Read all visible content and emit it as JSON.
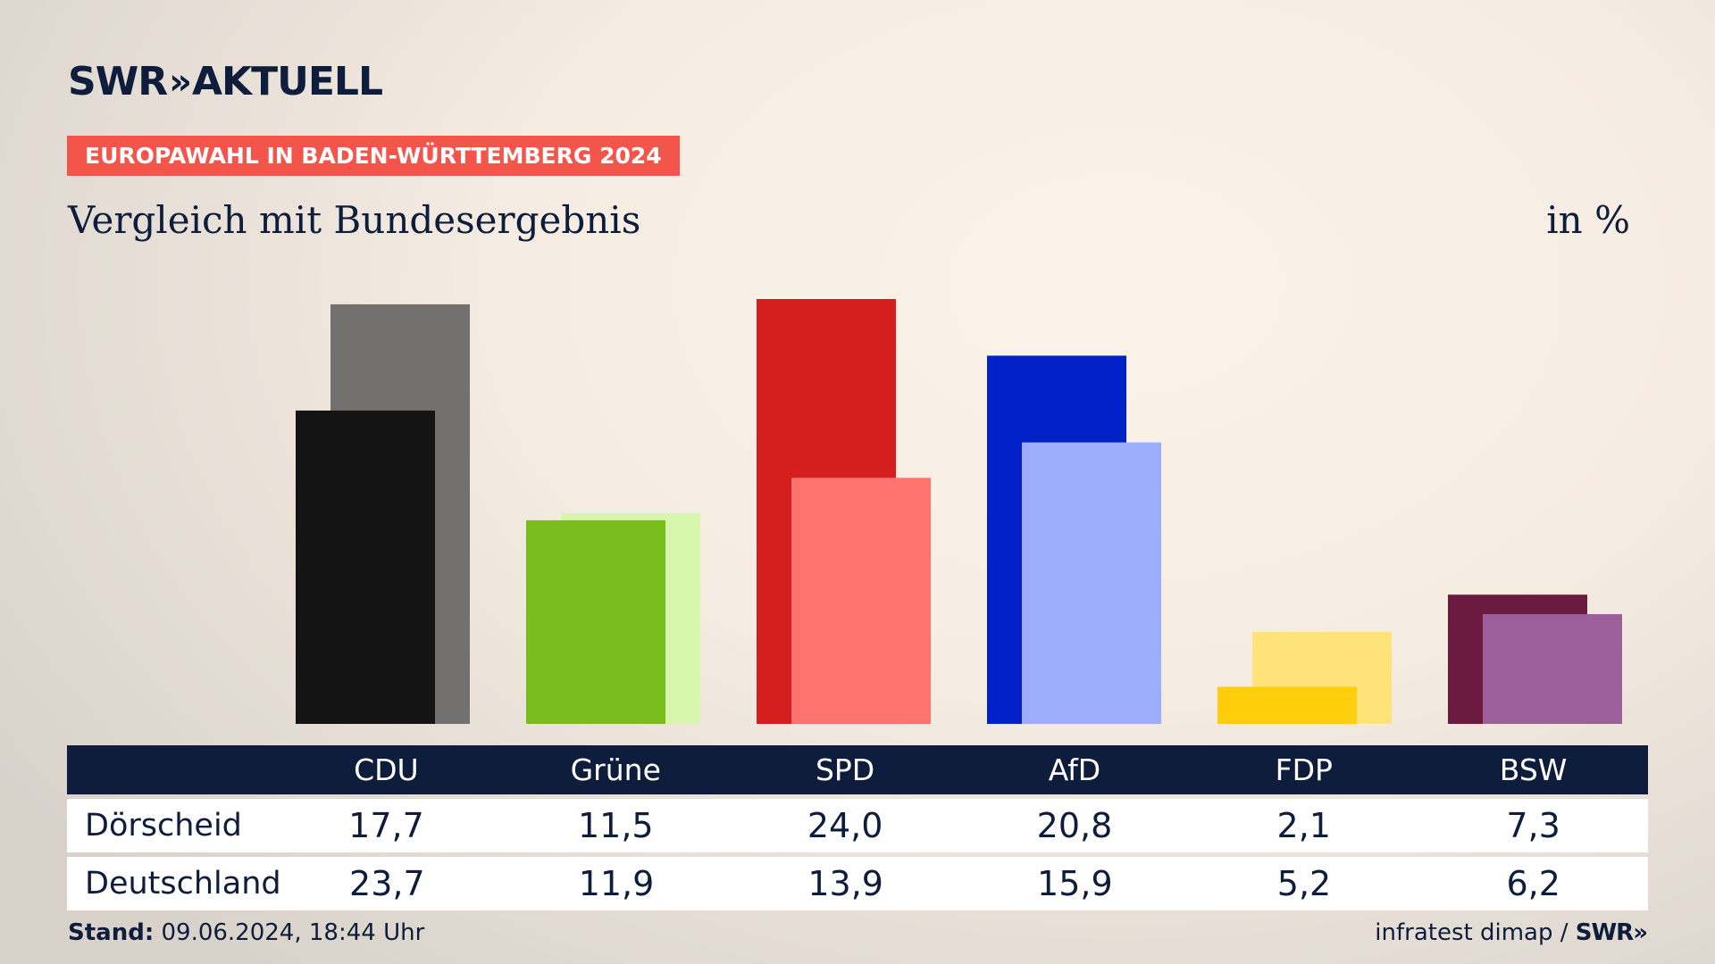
{
  "header": {
    "logo_text": "SWR",
    "logo_chevrons": "»",
    "logo_suffix": "AKTUELL",
    "badge": "EUROPAWAHL IN BADEN-WÜRTTEMBERG 2024",
    "subtitle": "Vergleich mit Bundesergebnis",
    "unit": "in %"
  },
  "chart_data": {
    "type": "bar",
    "categories": [
      "CDU",
      "Grüne",
      "SPD",
      "AfD",
      "FDP",
      "BSW"
    ],
    "series": [
      {
        "name": "Dörscheid",
        "values": [
          17.7,
          11.5,
          24.0,
          20.8,
          2.1,
          7.3
        ],
        "colors": [
          "#141414",
          "#79bd1c",
          "#d51f1f",
          "#0022c8",
          "#fecd0b",
          "#6b1a40"
        ]
      },
      {
        "name": "Deutschland",
        "values": [
          23.7,
          11.9,
          13.9,
          15.9,
          5.2,
          6.2
        ],
        "colors": [
          "#737170",
          "#d8f5ac",
          "#fe736e",
          "#9eacfd",
          "#fee37a",
          "#9c5f9a"
        ]
      }
    ],
    "ylim": [
      0,
      24
    ]
  },
  "table": {
    "rows": [
      {
        "label": "Dörscheid",
        "values": [
          "17,7",
          "11,5",
          "24,0",
          "20,8",
          "2,1",
          "7,3"
        ]
      },
      {
        "label": "Deutschland",
        "values": [
          "23,7",
          "11,9",
          "13,9",
          "15,9",
          "5,2",
          "6,2"
        ]
      }
    ]
  },
  "footer": {
    "stand_label": "Stand:",
    "stand_value": "09.06.2024, 18:44 Uhr",
    "source": "infratest dimap /",
    "source_logo": "SWR»"
  }
}
